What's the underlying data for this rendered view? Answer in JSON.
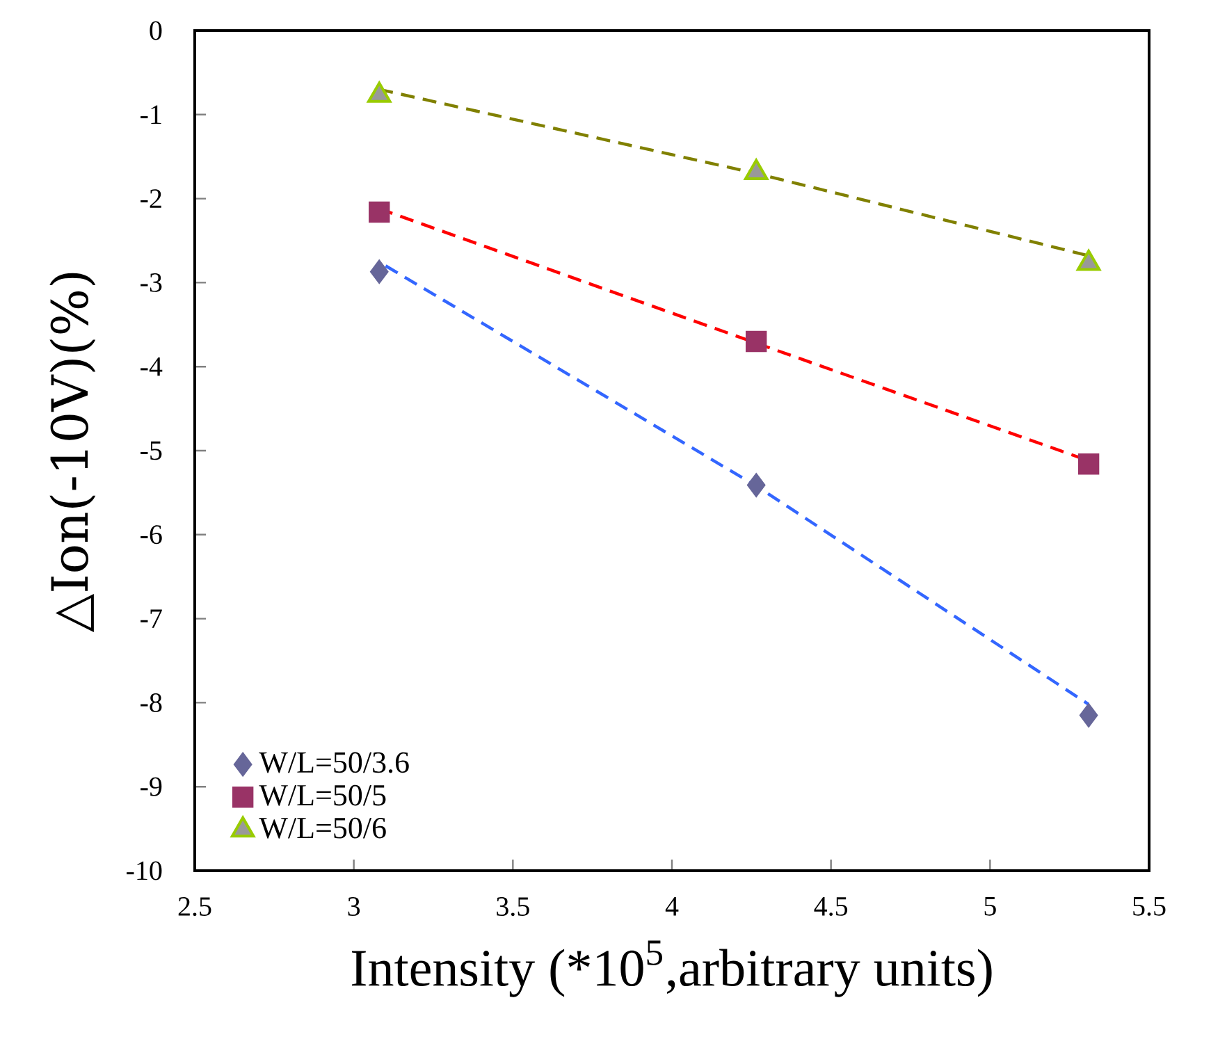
{
  "chart_data": {
    "type": "scatter",
    "xlabel": "Intensity (*10$^{5}$,arbitrary units)",
    "ylabel": "△Ion(-10V)(%)",
    "x": [
      3.08,
      4.265,
      5.31
    ],
    "xlim": [
      2.5,
      5.5
    ],
    "xticks": [
      2.5,
      3,
      3.5,
      4,
      4.5,
      5,
      5.5
    ],
    "ylim": [
      -10,
      0
    ],
    "yticks": [
      -10,
      -9,
      -8,
      -7,
      -6,
      -5,
      -4,
      -3,
      -2,
      -1,
      0
    ],
    "grid": false,
    "legend": "bottom left",
    "series": [
      {
        "name": "W/L=50/3.6",
        "color": "#666699",
        "marker": "diamond",
        "values": [
          -2.87,
          -5.41,
          -8.15
        ]
      },
      {
        "name": "W/L=50/5",
        "color": "#993366",
        "marker": "square",
        "values": [
          -2.16,
          -3.7,
          -5.16
        ]
      },
      {
        "name": "W/L=50/6",
        "color": "#999999",
        "marker": "triangle",
        "values": [
          -0.77,
          -1.69,
          -2.77
        ]
      },
      {
        "type": "line",
        "x": [
          3.1,
          4.265,
          5.31
        ],
        "color": "#3366ff",
        "line_style": "dashed",
        "marker": "none",
        "values": [
          -2.8,
          -5.42,
          -8.02
        ]
      },
      {
        "type": "line",
        "x": [
          3.08,
          4.265,
          5.31
        ],
        "color": "#ff0000",
        "line_style": "dashed",
        "marker": "none",
        "values": [
          -2.12,
          -3.72,
          -5.12
        ]
      },
      {
        "type": "line",
        "x": [
          3.08,
          4.265,
          5.31
        ],
        "color": "#808000",
        "line_style": "dashed",
        "marker": "none",
        "values": [
          -0.7,
          -1.7,
          -2.68
        ]
      }
    ]
  }
}
